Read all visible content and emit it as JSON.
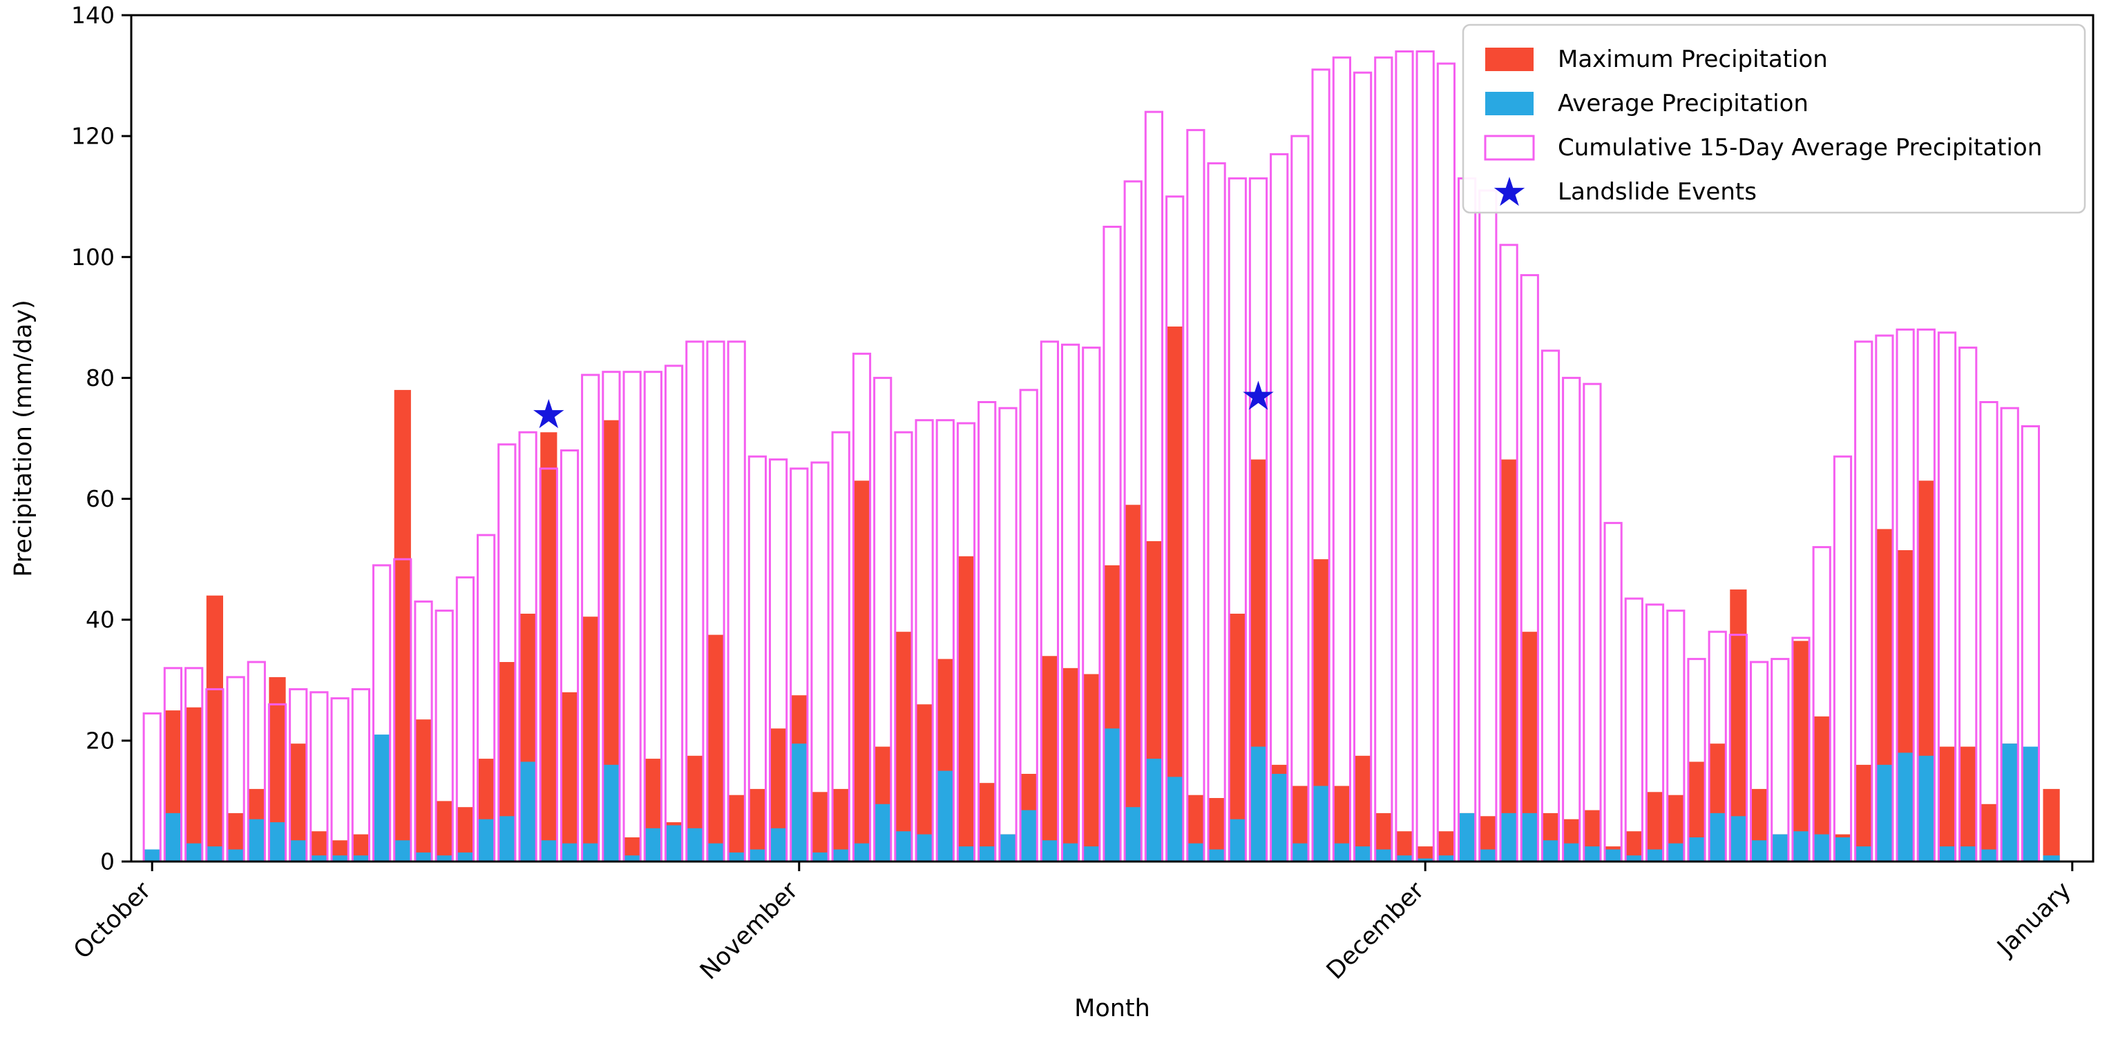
{
  "figure": {
    "background": "#ffffff",
    "axis_color": "#000000"
  },
  "chart_data": {
    "type": "bar",
    "title": "",
    "xlabel": "Month",
    "ylabel": "Precipitation (mm/day)",
    "ylim": [
      0,
      140
    ],
    "yticks": [
      0,
      20,
      40,
      60,
      80,
      100,
      120,
      140
    ],
    "grid": false,
    "legend_position": "upper right",
    "n_days": 92,
    "xticks": [
      {
        "day": 0,
        "label": "October"
      },
      {
        "day": 31,
        "label": "November"
      },
      {
        "day": 61,
        "label": "December"
      },
      {
        "day": 92,
        "label": "January"
      }
    ],
    "series": [
      {
        "name": "Maximum Precipitation",
        "type": "bar",
        "style": "filled",
        "color": "#f64a33",
        "values": [
          2,
          25,
          25.5,
          44,
          8,
          12,
          30.5,
          19.5,
          5,
          3.5,
          4.5,
          5,
          78,
          23.5,
          10,
          9,
          17,
          33,
          41,
          71,
          28,
          40.5,
          73,
          4,
          17,
          6.5,
          17.5,
          37.5,
          11,
          12,
          22,
          27.5,
          11.5,
          12,
          63,
          19,
          38,
          26,
          33.5,
          50.5,
          13,
          4.5,
          14.5,
          34,
          32,
          31,
          49,
          59,
          53,
          88.5,
          11,
          10.5,
          41,
          66.5,
          16,
          12.5,
          50,
          12.5,
          17.5,
          8,
          5,
          2.5,
          5,
          8,
          7.5,
          66.5,
          38,
          8,
          7,
          8.5,
          2.5,
          5,
          11.5,
          11,
          16.5,
          19.5,
          45,
          12,
          4.5,
          36.5,
          24,
          4.5,
          16,
          55,
          51.5,
          63,
          19,
          19,
          9.5,
          19.5,
          17,
          12
        ]
      },
      {
        "name": "Average Precipitation",
        "type": "bar",
        "style": "filled",
        "color": "#29a8e2",
        "values": [
          2,
          8,
          3,
          2.5,
          2,
          7,
          6.5,
          3.5,
          1,
          1,
          1,
          21,
          3.5,
          1.5,
          1,
          1.5,
          7,
          7.5,
          16.5,
          3.5,
          3,
          3,
          16,
          1,
          5.5,
          6,
          5.5,
          3,
          1.5,
          2,
          5.5,
          19.5,
          1.5,
          2,
          3,
          9.5,
          5,
          4.5,
          15,
          2.5,
          2.5,
          4.5,
          8.5,
          3.5,
          3,
          2.5,
          22,
          9,
          17,
          14,
          3,
          2,
          7,
          19,
          14.5,
          3,
          12.5,
          3,
          2.5,
          2,
          1,
          0.5,
          1,
          8,
          2,
          8,
          8,
          3.5,
          3,
          2.5,
          2,
          1,
          2,
          3,
          4,
          8,
          7.5,
          3.5,
          4.5,
          5,
          4.5,
          4,
          2.5,
          16,
          18,
          17.5,
          2.5,
          2.5,
          2,
          19.5,
          19,
          1
        ]
      },
      {
        "name": "Cumulative 15-Day Average Precipitation",
        "type": "bar",
        "style": "outline",
        "color": "#f55ff0",
        "values": [
          24.5,
          32,
          32,
          28.5,
          30.5,
          33,
          26,
          28.5,
          28,
          27,
          28.5,
          49,
          50,
          43,
          41.5,
          47,
          54,
          69,
          71,
          65,
          68,
          80.5,
          81,
          81,
          81,
          82,
          86,
          86,
          86,
          67,
          66.5,
          65,
          66,
          71,
          84,
          80,
          71,
          73,
          73,
          72.5,
          76,
          75,
          78,
          86,
          85.5,
          85,
          105,
          112.5,
          124,
          110,
          121,
          115.5,
          113,
          113,
          117,
          120,
          131,
          133,
          130.5,
          133,
          134,
          134,
          132,
          113,
          111,
          102,
          97,
          84.5,
          80,
          79,
          56,
          43.5,
          42.5,
          41.5,
          33.5,
          38,
          37.5,
          33,
          33.5,
          37,
          52,
          67,
          86,
          87,
          88,
          88,
          87.5,
          85,
          76,
          75,
          72,
          0
        ]
      }
    ],
    "events": {
      "name": "Landslide Events",
      "marker": "star",
      "color": "#1616dd",
      "points": [
        {
          "day": 19,
          "value": 74
        },
        {
          "day": 53,
          "value": 77
        }
      ]
    }
  }
}
